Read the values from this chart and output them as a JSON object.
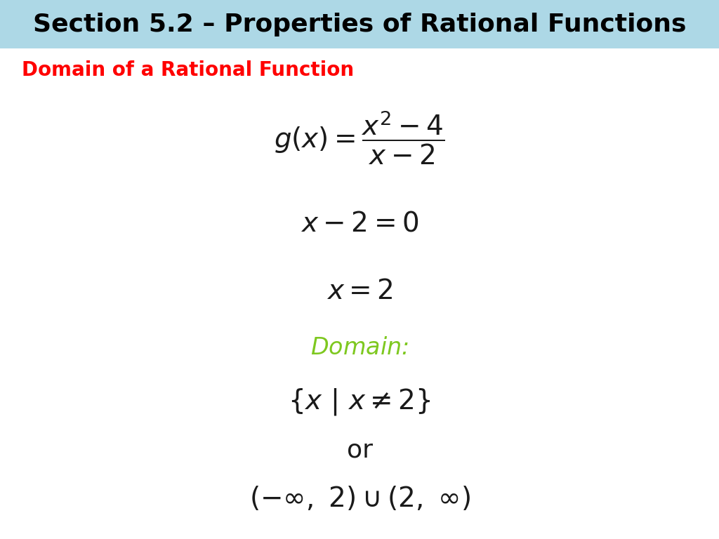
{
  "title": "Section 5.2 – Properties of Rational Functions",
  "title_bg_color": "#add8e6",
  "title_color": "#000000",
  "title_fontsize": 26,
  "subtitle": "Domain of a Rational Function",
  "subtitle_color": "#ff0000",
  "subtitle_fontsize": 20,
  "bg_color": "#ffffff",
  "domain_color": "#7ec820",
  "math_fontsize": 26,
  "math_color": "#1a1a1a",
  "domain_label_fontsize": 24
}
